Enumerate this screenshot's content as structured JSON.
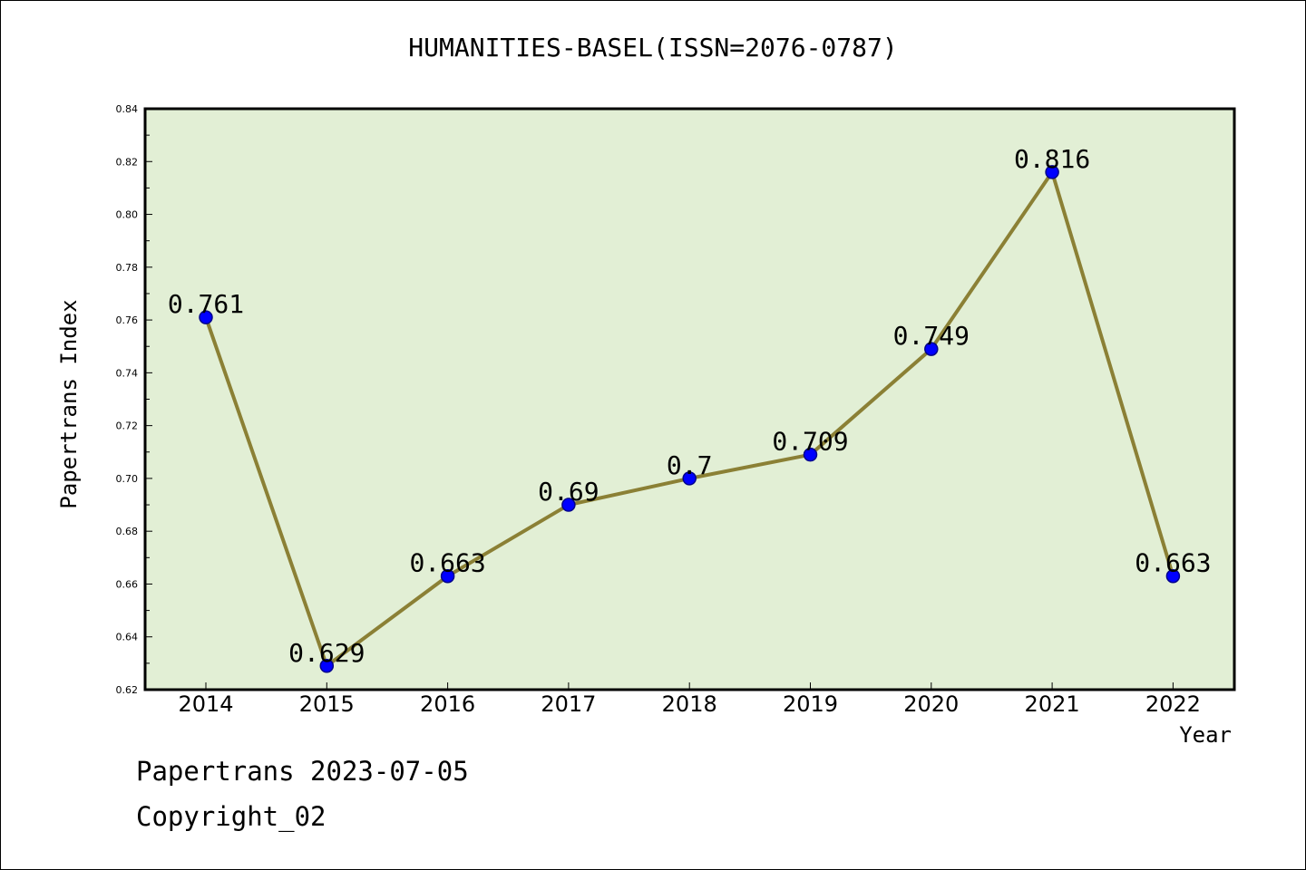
{
  "chart_data": {
    "type": "line",
    "title": "HUMANITIES-BASEL(ISSN=2076-0787)",
    "xlabel": "Year",
    "ylabel": "Papertrans Index",
    "categories": [
      "2014",
      "2015",
      "2016",
      "2017",
      "2018",
      "2019",
      "2020",
      "2021",
      "2022"
    ],
    "series": [
      {
        "values": [
          0.761,
          0.629,
          0.663,
          0.69,
          0.7,
          0.709,
          0.749,
          0.816,
          0.663
        ],
        "labels": [
          "0.761",
          "0.629",
          "0.663",
          "0.69",
          "0.7",
          "0.709",
          "0.749",
          "0.816",
          "0.663"
        ]
      }
    ],
    "ylim": [
      0.62,
      0.84
    ],
    "yticks": [
      0.62,
      0.64,
      0.66,
      0.68,
      0.7,
      0.72,
      0.74,
      0.76,
      0.78,
      0.8,
      0.82,
      0.84
    ],
    "ytick_labels": [
      "0.62",
      "0.64",
      "0.66",
      "0.68",
      "0.70",
      "0.72",
      "0.74",
      "0.76",
      "0.78",
      "0.80",
      "0.82",
      "0.84"
    ],
    "grid": false,
    "legend": "none",
    "colors": {
      "plot_background": "#e2efd5",
      "line": "#8b8035",
      "marker": "#0000ff",
      "marker_edge": "#00008b",
      "axes": "#000000"
    }
  },
  "footer": {
    "date_line": "Papertrans 2023-07-05",
    "copyright_line": "Copyright_02"
  }
}
